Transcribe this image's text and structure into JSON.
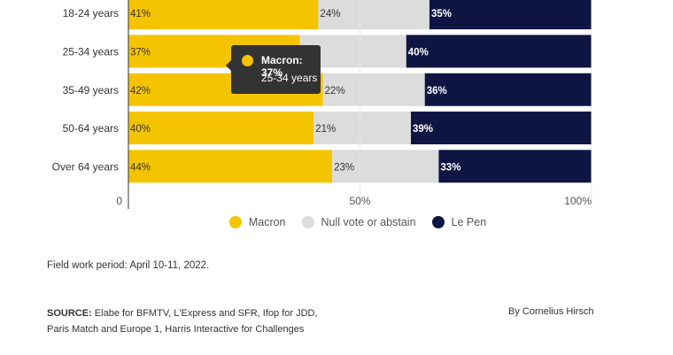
{
  "chart_data": {
    "type": "bar",
    "orientation": "horizontal",
    "stacked": true,
    "categories": [
      "18-24 years",
      "25-34 years",
      "35-49 years",
      "50-64 years",
      "Over 64 years"
    ],
    "series": [
      {
        "name": "Macron",
        "color": "#f5c400",
        "values": [
          41,
          37,
          42,
          40,
          44
        ]
      },
      {
        "name": "Null vote or abstain",
        "color": "#dcdcdc",
        "values": [
          24,
          23,
          22,
          21,
          23
        ]
      },
      {
        "name": "Le Pen",
        "color": "#0e1543",
        "values": [
          35,
          40,
          36,
          39,
          33
        ]
      }
    ],
    "data_labels": [
      [
        "41%",
        "24%",
        "35%"
      ],
      [
        "37%",
        "",
        "40%"
      ],
      [
        "42%",
        "22%",
        "36%"
      ],
      [
        "40%",
        "21%",
        "39%"
      ],
      [
        "44%",
        "23%",
        "33%"
      ]
    ],
    "x_ticks": [
      "0",
      "50%",
      "100%"
    ],
    "xlim": [
      0,
      100
    ],
    "legend_position": "bottom-center"
  },
  "tooltip": {
    "series": "Macron",
    "title": "Macron: 37%",
    "subtitle": "25-34 years",
    "color": "#f5c400"
  },
  "footer": {
    "note": "Field work period: April 10-11, 2022.",
    "source_label": "SOURCE:",
    "source_text": "Elabe for BFMTV, L'Express and SFR, Ifop for JDD, Paris Match and Europe 1, Harris Interactive for Challenges",
    "byline": "By Cornelius Hirsch"
  }
}
